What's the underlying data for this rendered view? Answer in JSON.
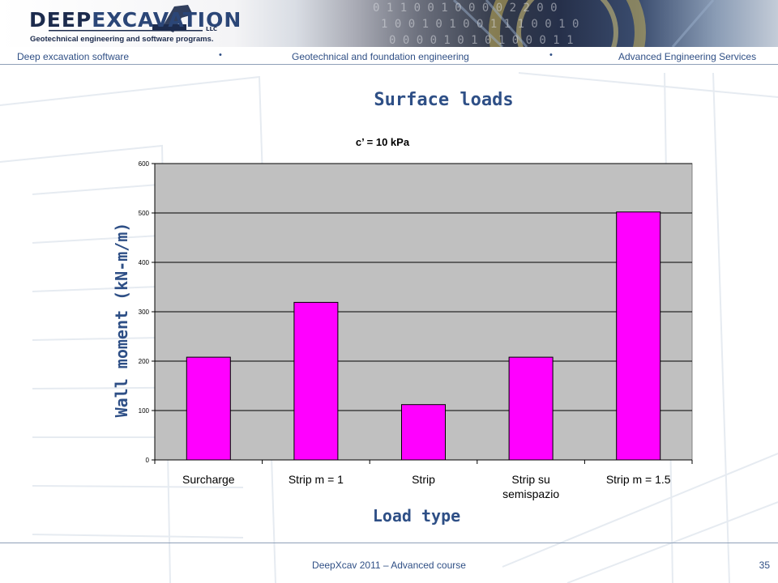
{
  "header": {
    "logo_part1": "DEEP",
    "logo_part2": "EXCAVATION",
    "logo_suffix": "LLC",
    "tagline": "Geotechnical engineering and software programs."
  },
  "nav": {
    "items": [
      "Deep excavation software",
      "Geotechnical and foundation engineering",
      "Advanced Engineering Services"
    ],
    "separator": "•"
  },
  "slide": {
    "title": "Surface loads"
  },
  "chart_data": {
    "type": "bar",
    "title": "c’ = 10 kPa",
    "xlabel": "Load type",
    "ylabel": "Wall moment (kN-m/m)",
    "categories": [
      "Surcharge",
      "Strip m = 1",
      "Strip",
      "Strip su semispazio",
      "Strip m = 1.5"
    ],
    "category_lines": [
      [
        "Surcharge"
      ],
      [
        "Strip m = 1"
      ],
      [
        "Strip"
      ],
      [
        "Strip su",
        "semispazio"
      ],
      [
        "Strip m = 1.5"
      ]
    ],
    "values": [
      208,
      319,
      112,
      208,
      502
    ],
    "ylim": [
      0,
      600
    ],
    "yticks": [
      0,
      100,
      200,
      300,
      400,
      500,
      600
    ],
    "grid": true,
    "legend": "none",
    "bar_color": "#ff00ff",
    "plot_bg": "#c0c0c0"
  },
  "footer": {
    "text": "DeepXcav 2011 – Advanced course",
    "page": "35"
  },
  "colors": {
    "accent": "#2f4f85",
    "brand_dark": "#1c2b4d"
  }
}
